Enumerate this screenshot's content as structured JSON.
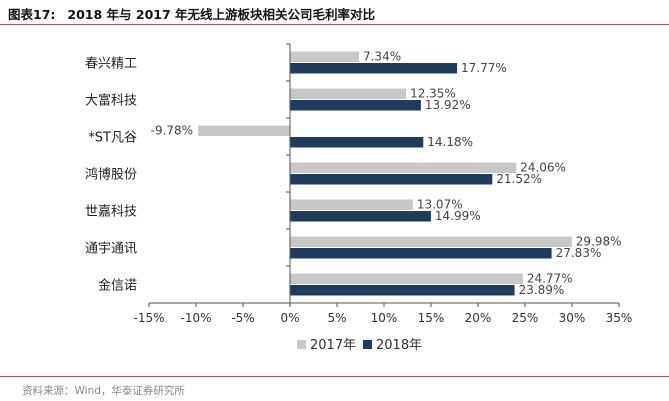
{
  "header": {
    "figure_label": "图表17:",
    "title": "2018 年与 2017 年无线上游板块相关公司毛利率对比"
  },
  "footer": {
    "source": "资料来源：Wind，华泰证券研究所"
  },
  "colors": {
    "series_2017": "#c8c8c8",
    "series_2018": "#1f3b5e",
    "rule": "#c0504d"
  },
  "chart_data": {
    "type": "bar",
    "orientation": "horizontal",
    "title": "2018 年与 2017 年无线上游板块相关公司毛利率对比",
    "xlabel": "",
    "ylabel": "",
    "xlim": [
      -15,
      35
    ],
    "x_ticks": [
      -15,
      -10,
      -5,
      0,
      5,
      10,
      15,
      20,
      25,
      30,
      35
    ],
    "x_tick_labels": [
      "-15%",
      "-10%",
      "-5%",
      "0%",
      "5%",
      "10%",
      "15%",
      "20%",
      "25%",
      "30%",
      "35%"
    ],
    "grid": false,
    "legend_position": "bottom",
    "categories": [
      "春兴精工",
      "大富科技",
      "*ST凡谷",
      "鸿博股份",
      "世嘉科技",
      "通宇通讯",
      "金信诺"
    ],
    "series": [
      {
        "name": "2017年",
        "values": [
          7.34,
          12.35,
          -9.78,
          24.06,
          13.07,
          29.98,
          24.77
        ],
        "labels": [
          "7.34%",
          "12.35%",
          "-9.78%",
          "24.06%",
          "13.07%",
          "29.98%",
          "24.77%"
        ]
      },
      {
        "name": "2018年",
        "values": [
          17.77,
          13.92,
          14.18,
          21.52,
          14.99,
          27.83,
          23.89
        ],
        "labels": [
          "17.77%",
          "13.92%",
          "14.18%",
          "21.52%",
          "14.99%",
          "27.83%",
          "23.89%"
        ]
      }
    ]
  }
}
